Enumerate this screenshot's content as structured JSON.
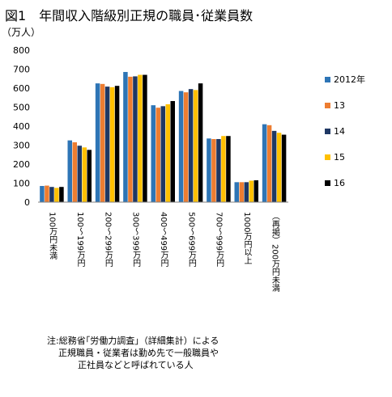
{
  "chart_data": {
    "type": "bar",
    "title": "図1　年間収入階級別正規の職員･従業員数",
    "ylabel": "（万人）",
    "ylim": [
      0,
      800
    ],
    "yticks": [
      "0",
      "100",
      "200",
      "300",
      "400",
      "500",
      "600",
      "700",
      "800"
    ],
    "grid": false,
    "legend_position": "right",
    "categories": [
      "100万円未満",
      "100～199万円",
      "200～299万円",
      "300～399万円",
      "400～499万円",
      "500～699万円",
      "700～999万円",
      "1000万円以上",
      "（再掲）200万円未満"
    ],
    "series": [
      {
        "name": "2012年",
        "color": "#2e75b6",
        "values": [
          85,
          325,
          625,
          685,
          510,
          585,
          335,
          105,
          410
        ]
      },
      {
        "name": "13",
        "color": "#ed7d31",
        "values": [
          87,
          315,
          622,
          660,
          497,
          578,
          332,
          105,
          405
        ]
      },
      {
        "name": "14",
        "color": "#1f3864",
        "values": [
          80,
          297,
          608,
          662,
          505,
          595,
          332,
          105,
          375
        ]
      },
      {
        "name": "15",
        "color": "#ffc000",
        "values": [
          75,
          288,
          605,
          670,
          515,
          590,
          348,
          113,
          365
        ]
      },
      {
        "name": "16",
        "color": "#000000",
        "values": [
          80,
          275,
          612,
          670,
          532,
          625,
          348,
          115,
          355
        ]
      }
    ],
    "note": [
      "注:総務省｢労働力調査｣（詳細集計）による",
      "正規職員・従業者は勤め先で一般職員や",
      "正社員などと呼ばれている人"
    ]
  }
}
